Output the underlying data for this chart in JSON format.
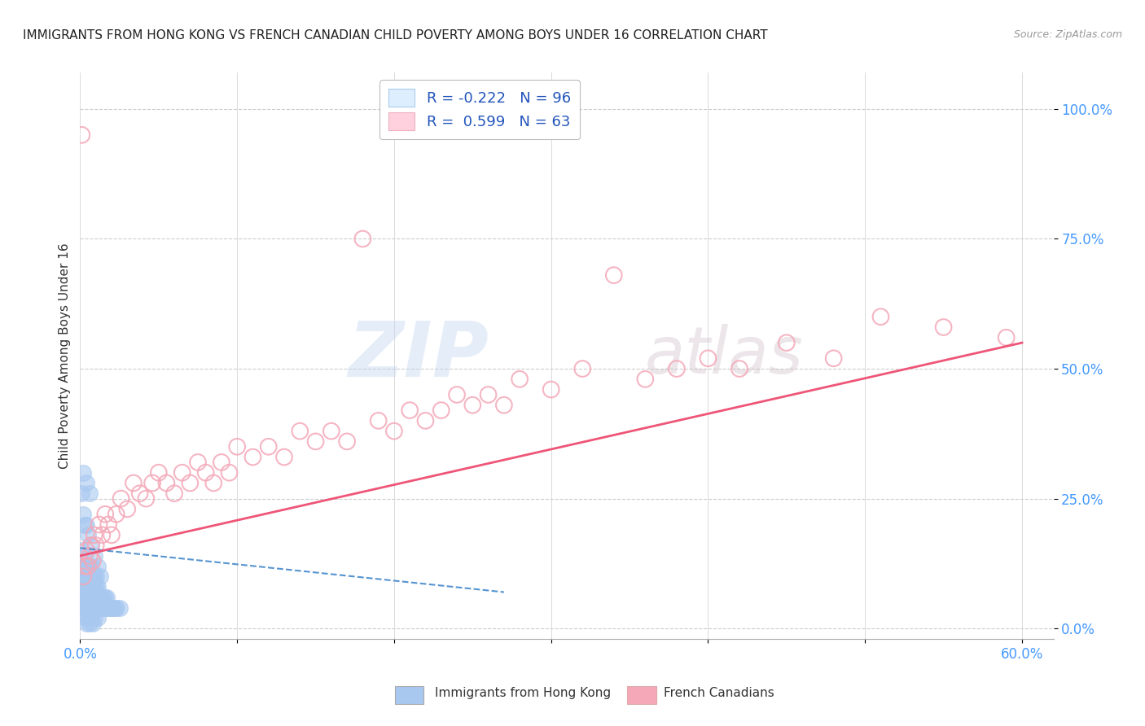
{
  "title": "IMMIGRANTS FROM HONG KONG VS FRENCH CANADIAN CHILD POVERTY AMONG BOYS UNDER 16 CORRELATION CHART",
  "source": "Source: ZipAtlas.com",
  "ylabel": "Child Poverty Among Boys Under 16",
  "xlim": [
    0.0,
    0.62
  ],
  "ylim": [
    -0.02,
    1.07
  ],
  "yticks": [
    0.0,
    0.25,
    0.5,
    0.75,
    1.0
  ],
  "ytick_labels": [
    "0.0%",
    "25.0%",
    "50.0%",
    "75.0%",
    "100.0%"
  ],
  "xticks": [
    0.0,
    0.1,
    0.2,
    0.3,
    0.4,
    0.5,
    0.6
  ],
  "xtick_labels": [
    "0.0%",
    "",
    "",
    "",
    "",
    "",
    "60.0%"
  ],
  "hk_R": -0.222,
  "hk_N": 96,
  "fc_R": 0.599,
  "fc_N": 63,
  "hk_color": "#a8c8f0",
  "fc_color": "#f4a8b8",
  "hk_line_color": "#4488cc",
  "fc_line_color": "#ee5577",
  "hk_scatter_x": [
    0.0005,
    0.001,
    0.001,
    0.001,
    0.0015,
    0.0015,
    0.002,
    0.002,
    0.002,
    0.002,
    0.002,
    0.003,
    0.003,
    0.003,
    0.003,
    0.003,
    0.003,
    0.004,
    0.004,
    0.004,
    0.004,
    0.004,
    0.005,
    0.005,
    0.005,
    0.005,
    0.005,
    0.005,
    0.006,
    0.006,
    0.006,
    0.006,
    0.006,
    0.007,
    0.007,
    0.007,
    0.007,
    0.007,
    0.007,
    0.008,
    0.008,
    0.008,
    0.008,
    0.009,
    0.009,
    0.009,
    0.009,
    0.01,
    0.01,
    0.01,
    0.01,
    0.01,
    0.011,
    0.011,
    0.011,
    0.012,
    0.012,
    0.013,
    0.013,
    0.014,
    0.014,
    0.015,
    0.015,
    0.016,
    0.016,
    0.017,
    0.017,
    0.018,
    0.019,
    0.02,
    0.021,
    0.022,
    0.023,
    0.025,
    0.001,
    0.002,
    0.003,
    0.005,
    0.007,
    0.009,
    0.011,
    0.013,
    0.003,
    0.005,
    0.007,
    0.009,
    0.011,
    0.004,
    0.006,
    0.008,
    0.002,
    0.004,
    0.006,
    0.003,
    0.005,
    0.004
  ],
  "hk_scatter_y": [
    0.05,
    0.07,
    0.1,
    0.15,
    0.05,
    0.08,
    0.04,
    0.06,
    0.08,
    0.1,
    0.12,
    0.04,
    0.06,
    0.08,
    0.1,
    0.12,
    0.14,
    0.04,
    0.06,
    0.08,
    0.1,
    0.12,
    0.04,
    0.06,
    0.07,
    0.08,
    0.1,
    0.12,
    0.04,
    0.06,
    0.08,
    0.1,
    0.12,
    0.04,
    0.05,
    0.06,
    0.08,
    0.1,
    0.12,
    0.04,
    0.06,
    0.08,
    0.1,
    0.04,
    0.06,
    0.08,
    0.1,
    0.04,
    0.05,
    0.06,
    0.08,
    0.1,
    0.04,
    0.06,
    0.08,
    0.04,
    0.06,
    0.04,
    0.06,
    0.04,
    0.06,
    0.04,
    0.06,
    0.04,
    0.06,
    0.04,
    0.06,
    0.04,
    0.04,
    0.04,
    0.04,
    0.04,
    0.04,
    0.04,
    0.26,
    0.22,
    0.2,
    0.18,
    0.16,
    0.14,
    0.12,
    0.1,
    0.02,
    0.02,
    0.02,
    0.02,
    0.02,
    0.01,
    0.01,
    0.01,
    0.3,
    0.28,
    0.26,
    0.08,
    0.08,
    0.2
  ],
  "fc_scatter_x": [
    0.001,
    0.002,
    0.003,
    0.004,
    0.005,
    0.006,
    0.007,
    0.008,
    0.009,
    0.01,
    0.012,
    0.014,
    0.016,
    0.018,
    0.02,
    0.023,
    0.026,
    0.03,
    0.034,
    0.038,
    0.042,
    0.046,
    0.05,
    0.055,
    0.06,
    0.065,
    0.07,
    0.075,
    0.08,
    0.085,
    0.09,
    0.095,
    0.1,
    0.11,
    0.12,
    0.13,
    0.14,
    0.15,
    0.16,
    0.17,
    0.18,
    0.19,
    0.2,
    0.21,
    0.22,
    0.23,
    0.24,
    0.25,
    0.26,
    0.27,
    0.28,
    0.3,
    0.32,
    0.34,
    0.36,
    0.38,
    0.4,
    0.42,
    0.45,
    0.48,
    0.51,
    0.55,
    0.59
  ],
  "fc_scatter_y": [
    0.95,
    0.1,
    0.12,
    0.15,
    0.12,
    0.14,
    0.16,
    0.13,
    0.18,
    0.16,
    0.2,
    0.18,
    0.22,
    0.2,
    0.18,
    0.22,
    0.25,
    0.23,
    0.28,
    0.26,
    0.25,
    0.28,
    0.3,
    0.28,
    0.26,
    0.3,
    0.28,
    0.32,
    0.3,
    0.28,
    0.32,
    0.3,
    0.35,
    0.33,
    0.35,
    0.33,
    0.38,
    0.36,
    0.38,
    0.36,
    0.75,
    0.4,
    0.38,
    0.42,
    0.4,
    0.42,
    0.45,
    0.43,
    0.45,
    0.43,
    0.48,
    0.46,
    0.5,
    0.68,
    0.48,
    0.5,
    0.52,
    0.5,
    0.55,
    0.52,
    0.6,
    0.58,
    0.56
  ],
  "watermark_zip": "ZIP",
  "watermark_atlas": "atlas",
  "background_color": "#ffffff",
  "grid_color": "#cccccc",
  "tick_color": "#4499ff",
  "legend_box_color": "#ddeeff",
  "legend_box2_color": "#ffd0dd"
}
